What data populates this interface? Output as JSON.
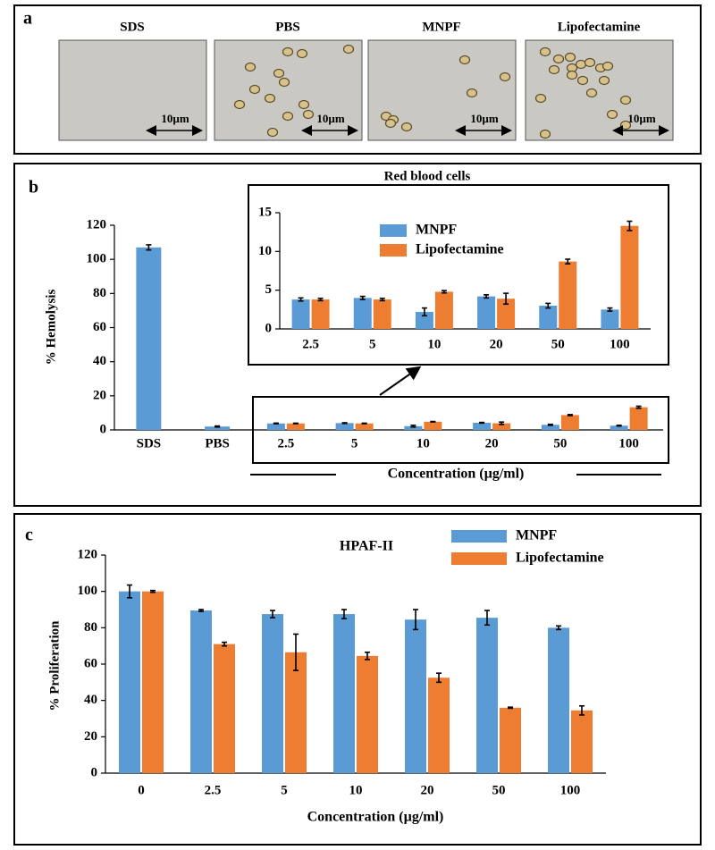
{
  "chart_data": [
    {
      "panel": "a",
      "type": "images",
      "images": [
        {
          "label": "SDS",
          "scale": "10µm"
        },
        {
          "label": "PBS",
          "scale": "10µm"
        },
        {
          "label": "MNPF",
          "scale": "10µm"
        },
        {
          "label": "Lipofectamine",
          "scale": "10µm"
        }
      ]
    },
    {
      "panel": "b",
      "type": "bar",
      "title": "Red blood cells",
      "ylabel": "% Hemolysis",
      "xlabel": "Concentration (µg/ml)",
      "categories": [
        "SDS",
        "PBS",
        "2.5",
        "5",
        "10",
        "20",
        "50",
        "100"
      ],
      "series": [
        {
          "color": "#5b9bd5",
          "values": [
            107,
            2,
            3.8,
            4,
            2.2,
            4.2,
            3,
            2.5
          ],
          "errors": [
            1.5,
            0.3,
            0.2,
            0.2,
            0.5,
            0.2,
            0.3,
            0.2
          ]
        },
        {
          "color": "#ed7d31",
          "values": [
            null,
            null,
            3.8,
            3.8,
            4.8,
            3.9,
            8.7,
            13.3
          ],
          "errors": [
            null,
            null,
            0.15,
            0.15,
            0.15,
            0.7,
            0.3,
            0.6
          ]
        }
      ],
      "ylim": [
        0,
        120
      ],
      "yticks": [
        0,
        20,
        40,
        60,
        80,
        100,
        120
      ],
      "inset": {
        "type": "bar",
        "categories": [
          "2.5",
          "5",
          "10",
          "20",
          "50",
          "100"
        ],
        "series": [
          {
            "name": "MNPF",
            "color": "#5b9bd5",
            "values": [
              3.8,
              4,
              2.2,
              4.2,
              3,
              2.5
            ],
            "errors": [
              0.2,
              0.2,
              0.5,
              0.2,
              0.3,
              0.2
            ]
          },
          {
            "name": "Lipofectamine",
            "color": "#ed7d31",
            "values": [
              3.8,
              3.8,
              4.8,
              3.9,
              8.7,
              13.3
            ],
            "errors": [
              0.15,
              0.15,
              0.15,
              0.7,
              0.3,
              0.6
            ]
          }
        ],
        "ylim": [
          0,
          15
        ],
        "yticks": [
          0,
          5,
          10,
          15
        ]
      }
    },
    {
      "panel": "c",
      "type": "bar",
      "title": "HPAF-II",
      "ylabel": "% Proliferation",
      "xlabel": "Concentration (µg/ml)",
      "categories": [
        "0",
        "2.5",
        "5",
        "10",
        "20",
        "50",
        "100"
      ],
      "series": [
        {
          "name": "MNPF",
          "color": "#5b9bd5",
          "values": [
            100,
            89.5,
            87.5,
            87.5,
            84.5,
            85.5,
            80
          ],
          "errors": [
            3.5,
            0.5,
            2,
            2.5,
            5.5,
            4,
            1
          ]
        },
        {
          "name": "Lipofectamine",
          "color": "#ed7d31",
          "values": [
            100,
            71,
            66.5,
            64.5,
            52.5,
            36,
            34.5
          ],
          "errors": [
            0.5,
            1,
            10,
            2,
            2.5,
            0.3,
            2.5
          ]
        }
      ],
      "ylim": [
        0,
        120
      ],
      "yticks": [
        0,
        20,
        40,
        60,
        80,
        100,
        120
      ]
    }
  ]
}
